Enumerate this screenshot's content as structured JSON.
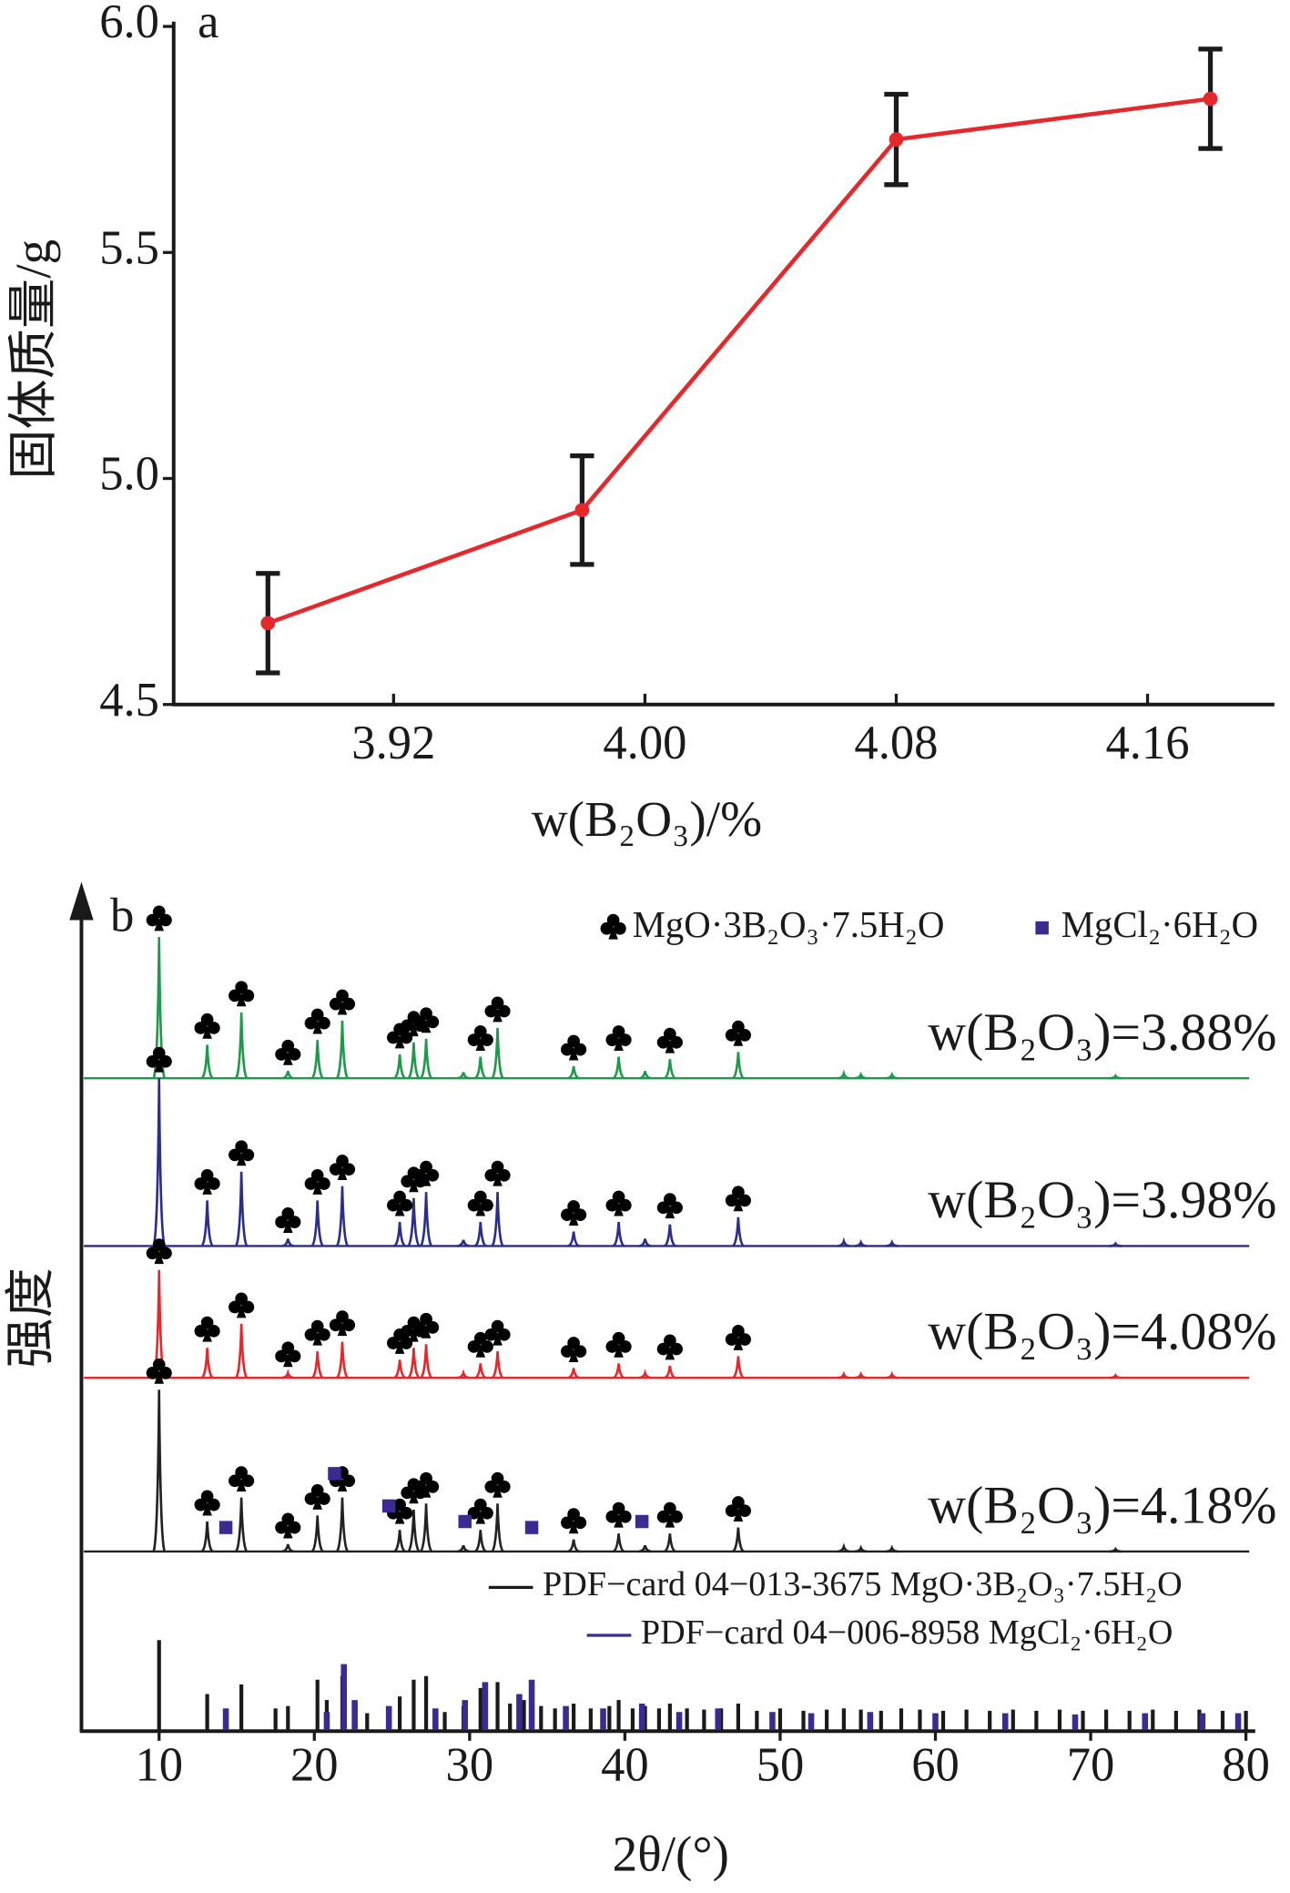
{
  "chart_data": [
    {
      "type": "line",
      "label": "a",
      "xlabel": "w(B₂O₃)/%",
      "ylabel": "固体质量/g",
      "color": "#e5282c",
      "x": [
        3.88,
        3.98,
        4.08,
        4.18
      ],
      "values": [
        4.68,
        4.93,
        5.75,
        5.84
      ],
      "errors": [
        0.11,
        0.12,
        0.1,
        0.11
      ],
      "xlim": [
        3.85,
        4.2
      ],
      "xticks": [
        3.92,
        {
          "value": 4.0,
          "label": "4.00"
        },
        4.08,
        4.16
      ],
      "ylim": [
        4.5,
        6.0
      ],
      "yticks": [
        {
          "value": 6.0,
          "label": "6.0"
        },
        5.5,
        {
          "value": 5.0,
          "label": "5.0"
        },
        4.5
      ]
    },
    {
      "type": "xrd",
      "label": "b",
      "xlabel": "2θ/(°)",
      "ylabel": "强度",
      "xlim": [
        5,
        80.6
      ],
      "xticks": [
        10,
        20,
        30,
        40,
        50,
        60,
        70,
        80
      ],
      "peak_positions": [
        10.0,
        13.1,
        15.3,
        18.3,
        20.2,
        21.8,
        25.5,
        26.4,
        27.2,
        29.6,
        30.7,
        31.8,
        36.7,
        39.6,
        41.3,
        42.9,
        47.3,
        54.1,
        55.2,
        57.2,
        71.6
      ],
      "series": [
        {
          "name": "w(B₂O₃)=3.88%",
          "color": "#1f9a4a",
          "values": [
            118,
            28,
            55,
            6,
            32,
            48,
            20,
            30,
            33,
            5,
            18,
            42,
            10,
            18,
            6,
            16,
            22,
            4,
            3,
            3,
            2
          ]
        },
        {
          "name": "w(B₂O₃)=3.98%",
          "color": "#2b2f8c",
          "values": [
            140,
            38,
            62,
            6,
            38,
            50,
            20,
            40,
            45,
            5,
            20,
            45,
            12,
            20,
            6,
            18,
            24,
            4,
            3,
            3,
            2
          ]
        },
        {
          "name": "w(B₂O₃)=4.08%",
          "color": "#e5282c",
          "values": [
            90,
            25,
            45,
            4,
            22,
            30,
            15,
            25,
            28,
            4,
            12,
            22,
            8,
            12,
            4,
            10,
            18,
            3,
            3,
            3,
            2
          ]
        },
        {
          "name": "w(B₂O₃)=4.18%",
          "color": "#222222",
          "values": [
            135,
            25,
            45,
            6,
            30,
            45,
            18,
            35,
            40,
            5,
            18,
            40,
            10,
            15,
            5,
            15,
            20,
            4,
            3,
            3,
            2
          ]
        }
      ],
      "phases": [
        {
          "name": "MgO·3B₂O₃·7.5H₂O",
          "marker": "club",
          "color": "#000000",
          "series": [
            0,
            1,
            2,
            3
          ],
          "positions": [
            10.0,
            13.1,
            15.3,
            18.3,
            20.2,
            21.8,
            25.5,
            26.4,
            27.2,
            30.7,
            31.8,
            36.7,
            39.6,
            42.9,
            47.3
          ]
        },
        {
          "name": "MgCl₂·6H₂O",
          "marker": "square",
          "color": "#3b2a8f",
          "series": [
            3
          ],
          "positions": [
            14.3,
            21.3,
            24.8,
            29.7,
            34.0,
            41.1
          ]
        }
      ],
      "references": [
        {
          "name": "PDF−card 04−013-3675 MgO·3B₂O₃·7.5H₂O",
          "color": "#1a1a1a",
          "x": [
            10.0,
            13.1,
            15.3,
            17.5,
            18.3,
            20.2,
            20.8,
            21.8,
            23.4,
            25.5,
            26.4,
            27.2,
            28.4,
            29.6,
            30.7,
            31.8,
            32.6,
            33.5,
            34.6,
            35.5,
            36.7,
            37.8,
            39.0,
            39.6,
            40.5,
            41.3,
            42.2,
            42.9,
            44.0,
            45.1,
            46.2,
            47.3,
            48.5,
            50.0,
            51.5,
            53.0,
            54.1,
            55.2,
            56.5,
            57.8,
            59.0,
            60.5,
            62.0,
            63.5,
            65.0,
            66.5,
            68.0,
            69.5,
            71.0,
            72.5,
            74.0,
            75.5,
            77.0,
            78.5,
            80.0
          ],
          "values": [
            75,
            30,
            38,
            18,
            20,
            42,
            25,
            45,
            14,
            28,
            42,
            45,
            15,
            20,
            35,
            40,
            22,
            25,
            20,
            18,
            22,
            18,
            20,
            25,
            18,
            20,
            18,
            22,
            18,
            17,
            18,
            22,
            16,
            18,
            16,
            17,
            18,
            17,
            16,
            18,
            17,
            16,
            17,
            16,
            17,
            16,
            17,
            16,
            17,
            16,
            17,
            16,
            17,
            16,
            16
          ]
        },
        {
          "name": "PDF−card 04−006-8958 MgCl₂·6H₂O",
          "color": "#3b2a8f",
          "x": [
            14.3,
            20.8,
            21.9,
            22.6,
            24.8,
            27.8,
            29.7,
            31.0,
            33.2,
            34.0,
            36.2,
            38.6,
            41.1,
            43.5,
            46.0,
            49.5,
            52.0,
            55.8,
            60.0,
            64.5,
            69.0,
            73.5,
            77.2,
            79.5
          ],
          "values": [
            18,
            15,
            55,
            25,
            20,
            18,
            25,
            40,
            30,
            42,
            20,
            18,
            22,
            15,
            18,
            15,
            14,
            15,
            14,
            14,
            13,
            14,
            14,
            14
          ]
        }
      ]
    }
  ]
}
